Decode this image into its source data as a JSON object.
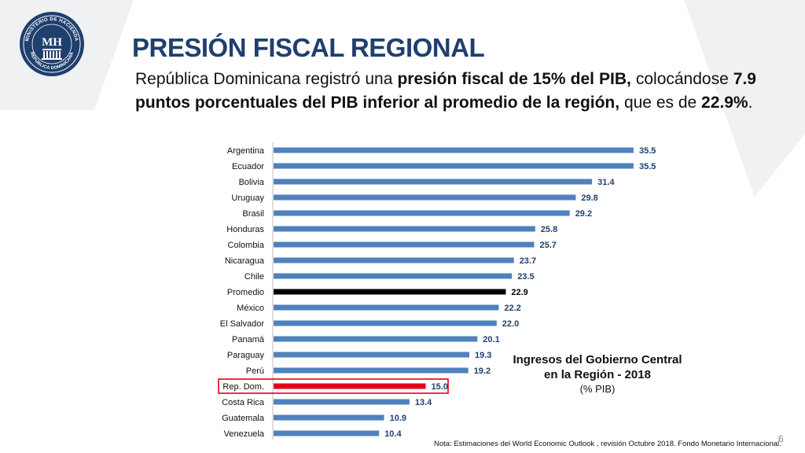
{
  "header": {
    "title": "PRESIÓN FISCAL REGIONAL",
    "logo": {
      "initials": "MH",
      "ring_top": "MINISTERIO DE HACIENDA",
      "ring_bottom": "REPÚBLICA DOMINICANA"
    }
  },
  "intro": {
    "t1": "República Dominicana registró una ",
    "b1": "presión fiscal de 15% del PIB,",
    "t2": " colocándose ",
    "b2": "7.9 puntos porcentuales del PIB inferior al promedio de la región,",
    "t3": " que es de ",
    "b3": "22.9%",
    "t4": "."
  },
  "chart_data": {
    "type": "bar",
    "orientation": "horizontal",
    "categories": [
      "Argentina",
      "Ecuador",
      "Bolivia",
      "Uruguay",
      "Brasil",
      "Honduras",
      "Colombia",
      "Nicaragua",
      "Chile",
      "Promedio",
      "México",
      "El Salvador",
      "Panamá",
      "Paraguay",
      "Perú",
      "Rep. Dom.",
      "Costa Rica",
      "Guatemala",
      "Venezuela"
    ],
    "values": [
      35.5,
      35.5,
      31.4,
      29.8,
      29.2,
      25.8,
      25.7,
      23.7,
      23.5,
      22.9,
      22.2,
      22.0,
      20.1,
      19.3,
      19.2,
      15.0,
      13.4,
      10.9,
      10.4
    ],
    "value_labels": [
      "35.5",
      "35.5",
      "31.4",
      "29.8",
      "29.2",
      "25.8",
      "25.7",
      "23.7",
      "23.5",
      "22.9",
      "22.2",
      "22.0",
      "20.1",
      "19.3",
      "19.2",
      "15.0",
      "13.4",
      "10.9",
      "10.4"
    ],
    "title": "Ingresos del Gobierno Central en la Región - 2018",
    "title_line1": "Ingresos del Gobierno Central",
    "title_line2": "en la Región - 2018",
    "subtitle": "(% PIB)",
    "colors": {
      "default": "#4f81bd",
      "Promedio": "#000000",
      "Rep. Dom.": "#e3001b",
      "highlight_box": "#e3001b",
      "value_label": "#1f3f6e"
    },
    "highlighted": "Rep. Dom.",
    "grid": false,
    "legend": "none"
  },
  "footer": {
    "note": "Nota: Estimaciones del World Economic Outlook , revisión Octubre 2018. Fondo Monetario Internacional.",
    "page": "6"
  }
}
